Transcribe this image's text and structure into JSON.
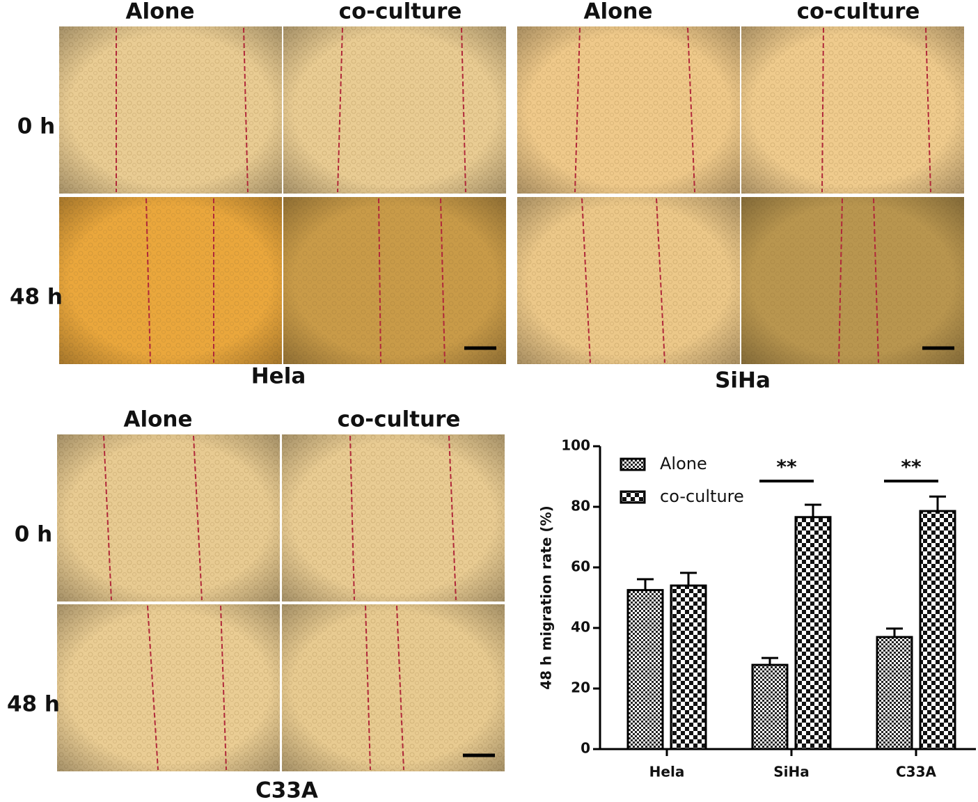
{
  "panels": [
    {
      "name": "Hela",
      "columns": [
        "Alone",
        "co-culture"
      ],
      "rows": [
        "0 h",
        "48 h"
      ]
    },
    {
      "name": "SiHa",
      "columns": [
        "Alone",
        "co-culture"
      ],
      "rows": []
    },
    {
      "name": "C33A",
      "columns": [
        "Alone",
        "co-culture"
      ],
      "rows": [
        "0 h",
        "48 h"
      ]
    }
  ],
  "chart_data": {
    "type": "bar",
    "ylabel": "48 h migration rate (%)",
    "categories": [
      "Hela",
      "SiHa",
      "C33A"
    ],
    "series": [
      {
        "name": "Alone",
        "color": "#000000",
        "pattern": "fine",
        "values": [
          52.5,
          27.8,
          37
        ],
        "errors": [
          3.6,
          2.3,
          2.8
        ]
      },
      {
        "name": "co-culture",
        "color": "#000000",
        "pattern": "checker",
        "values": [
          54,
          76.6,
          78.6
        ],
        "errors": [
          4.2,
          4.1,
          4.8
        ]
      }
    ],
    "significance": [
      null,
      "**",
      "**"
    ],
    "ylim": [
      0,
      100
    ],
    "yticks": [
      0,
      20,
      40,
      60,
      80,
      100
    ],
    "legend": "upper left"
  }
}
